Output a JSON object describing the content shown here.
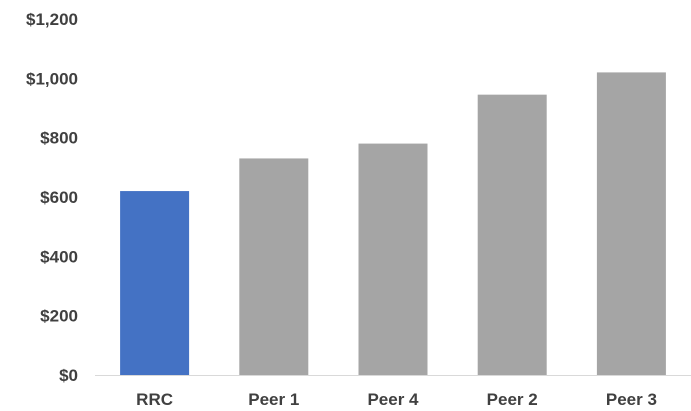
{
  "chart_data": {
    "type": "bar",
    "categories": [
      "RRC",
      "Peer 1",
      "Peer 4",
      "Peer 2",
      "Peer 3"
    ],
    "values": [
      620,
      730,
      780,
      945,
      1020
    ],
    "colors": [
      "#4472c4",
      "#a5a5a5",
      "#a5a5a5",
      "#a5a5a5",
      "#a5a5a5"
    ],
    "ylim": [
      0,
      1200
    ],
    "yticks": [
      0,
      200,
      400,
      600,
      800,
      1000,
      1200
    ],
    "ytick_labels": [
      "$0",
      "$200",
      "$400",
      "$600",
      "$800",
      "$1,000",
      "$1,200"
    ],
    "grid": false,
    "title": "",
    "xlabel": "",
    "ylabel": ""
  }
}
